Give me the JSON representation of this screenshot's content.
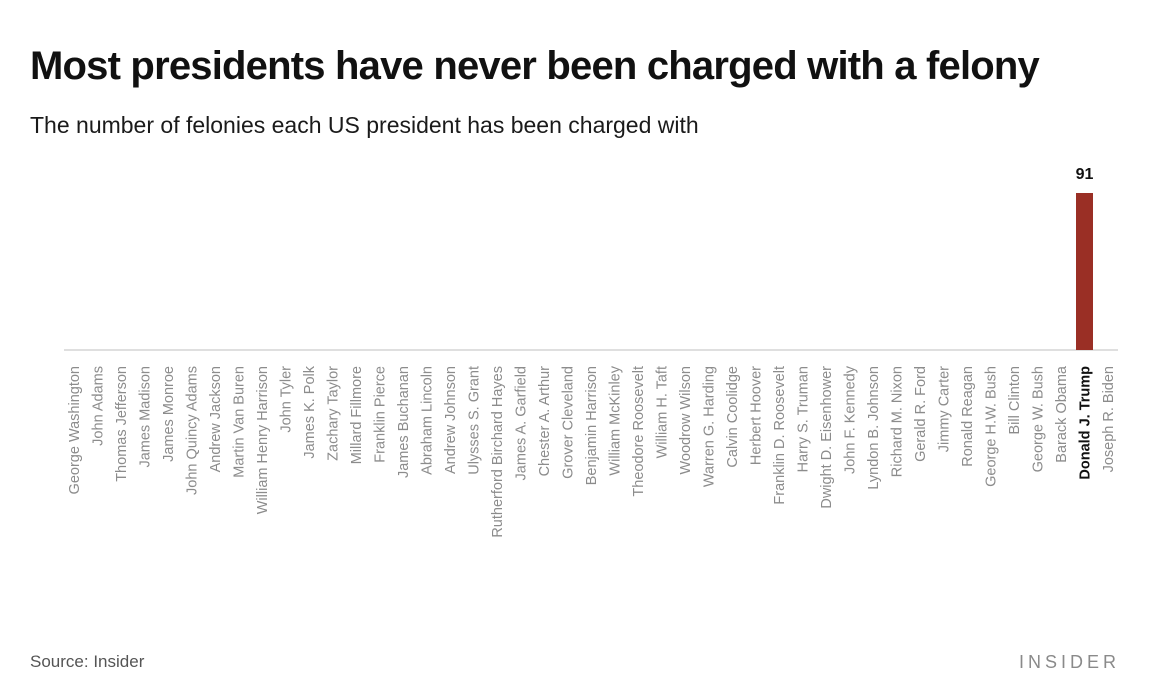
{
  "header": {
    "title": "Most presidents have never been charged with a felony",
    "subtitle": "The number of felonies each US president has been charged with"
  },
  "footer": {
    "source_label": "Source:",
    "source_value": "Insider",
    "logo_text": "INSIDER"
  },
  "colors": {
    "bar": "#9a2f25",
    "label": "#8c8c8c",
    "highlight_label": "#111111",
    "baseline": "#cccccc"
  },
  "chart_data": {
    "type": "bar",
    "title": "Most presidents have never been charged with a felony",
    "subtitle": "The number of felonies each US president has been charged with",
    "xlabel": "",
    "ylabel": "",
    "ylim": [
      0,
      91
    ],
    "grid": false,
    "highlight": "Donald J. Trump",
    "categories": [
      "George Washington",
      "John Adams",
      "Thomas Jefferson",
      "James Madison",
      "James Monroe",
      "John Quincy Adams",
      "Andrew Jackson",
      "Martin Van Buren",
      "William Henry Harrison",
      "John Tyler",
      "James K. Polk",
      "Zachary Taylor",
      "Millard Fillmore",
      "Franklin Pierce",
      "James Buchanan",
      "Abraham Lincoln",
      "Andrew Johnson",
      "Ulysses S. Grant",
      "Rutherford Birchard Hayes",
      "James A. Garfield",
      "Chester A. Arthur",
      "Grover Cleveland",
      "Benjamin Harrison",
      "William McKinley",
      "Theodore Roosevelt",
      "William H. Taft",
      "Woodrow Wilson",
      "Warren G. Harding",
      "Calvin Coolidge",
      "Herbert Hoover",
      "Franklin D. Roosevelt",
      "Harry S. Truman",
      "Dwight D. Eisenhower",
      "John F. Kennedy",
      "Lyndon B. Johnson",
      "Richard M. Nixon",
      "Gerald R. Ford",
      "Jimmy Carter",
      "Ronald Reagan",
      "George H.W. Bush",
      "Bill Clinton",
      "George W. Bush",
      "Barack Obama",
      "Donald J. Trump",
      "Joseph R. Biden"
    ],
    "values": [
      0,
      0,
      0,
      0,
      0,
      0,
      0,
      0,
      0,
      0,
      0,
      0,
      0,
      0,
      0,
      0,
      0,
      0,
      0,
      0,
      0,
      0,
      0,
      0,
      0,
      0,
      0,
      0,
      0,
      0,
      0,
      0,
      0,
      0,
      0,
      0,
      0,
      0,
      0,
      0,
      0,
      0,
      0,
      91,
      0
    ],
    "data_labels": [
      "",
      "",
      "",
      "",
      "",
      "",
      "",
      "",
      "",
      "",
      "",
      "",
      "",
      "",
      "",
      "",
      "",
      "",
      "",
      "",
      "",
      "",
      "",
      "",
      "",
      "",
      "",
      "",
      "",
      "",
      "",
      "",
      "",
      "",
      "",
      "",
      "",
      "",
      "",
      "",
      "",
      "",
      "",
      "91",
      ""
    ]
  }
}
